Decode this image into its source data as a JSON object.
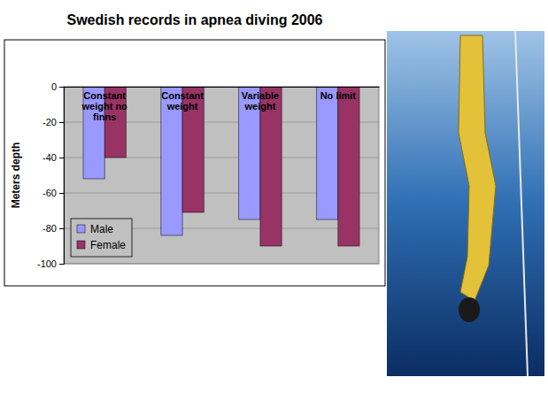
{
  "chart_data": {
    "type": "bar",
    "title": "Swedish records in apnea diving 2006",
    "y_label": "Meters depth",
    "categories": [
      "Constant weight no finns",
      "Constant weight",
      "Variable weight",
      "No limit"
    ],
    "series": [
      {
        "name": "Male",
        "color": "#9999ff",
        "values": [
          -52,
          -84,
          -75,
          -75
        ]
      },
      {
        "name": "Female",
        "color": "#993366",
        "values": [
          -40,
          -71,
          -90,
          -90
        ]
      }
    ],
    "ylim": [
      -100,
      0
    ],
    "yticks": [
      -100,
      -80,
      -60,
      -40,
      -20,
      0
    ],
    "grid": true,
    "legend": "lower left"
  }
}
